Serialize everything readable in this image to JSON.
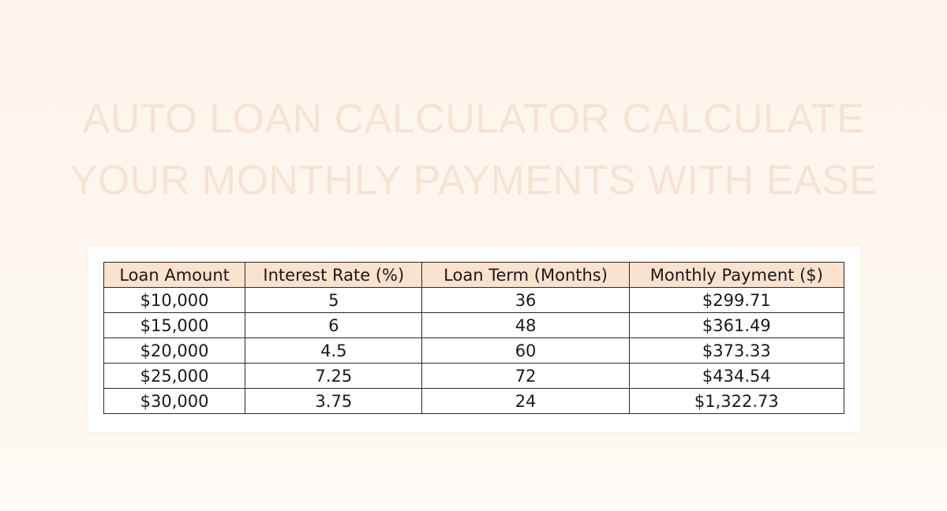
{
  "title": {
    "line1": "AUTO LOAN CALCULATOR CALCULATE",
    "line2": "YOUR MONTHLY PAYMENTS WITH EASE"
  },
  "table": {
    "headers": [
      "Loan Amount",
      "Interest Rate (%)",
      "Loan Term (Months)",
      "Monthly Payment ($)"
    ],
    "rows": [
      [
        "$10,000",
        "5",
        "36",
        "$299.71"
      ],
      [
        "$15,000",
        "6",
        "48",
        "$361.49"
      ],
      [
        "$20,000",
        "4.5",
        "60",
        "$373.33"
      ],
      [
        "$25,000",
        "7.25",
        "72",
        "$434.54"
      ],
      [
        "$30,000",
        "3.75",
        "24",
        "$1,322.73"
      ]
    ]
  },
  "colors": {
    "header_fill": "#fbe2cd",
    "title_color": "#f7e3d3",
    "background": "#fdf6ee"
  }
}
